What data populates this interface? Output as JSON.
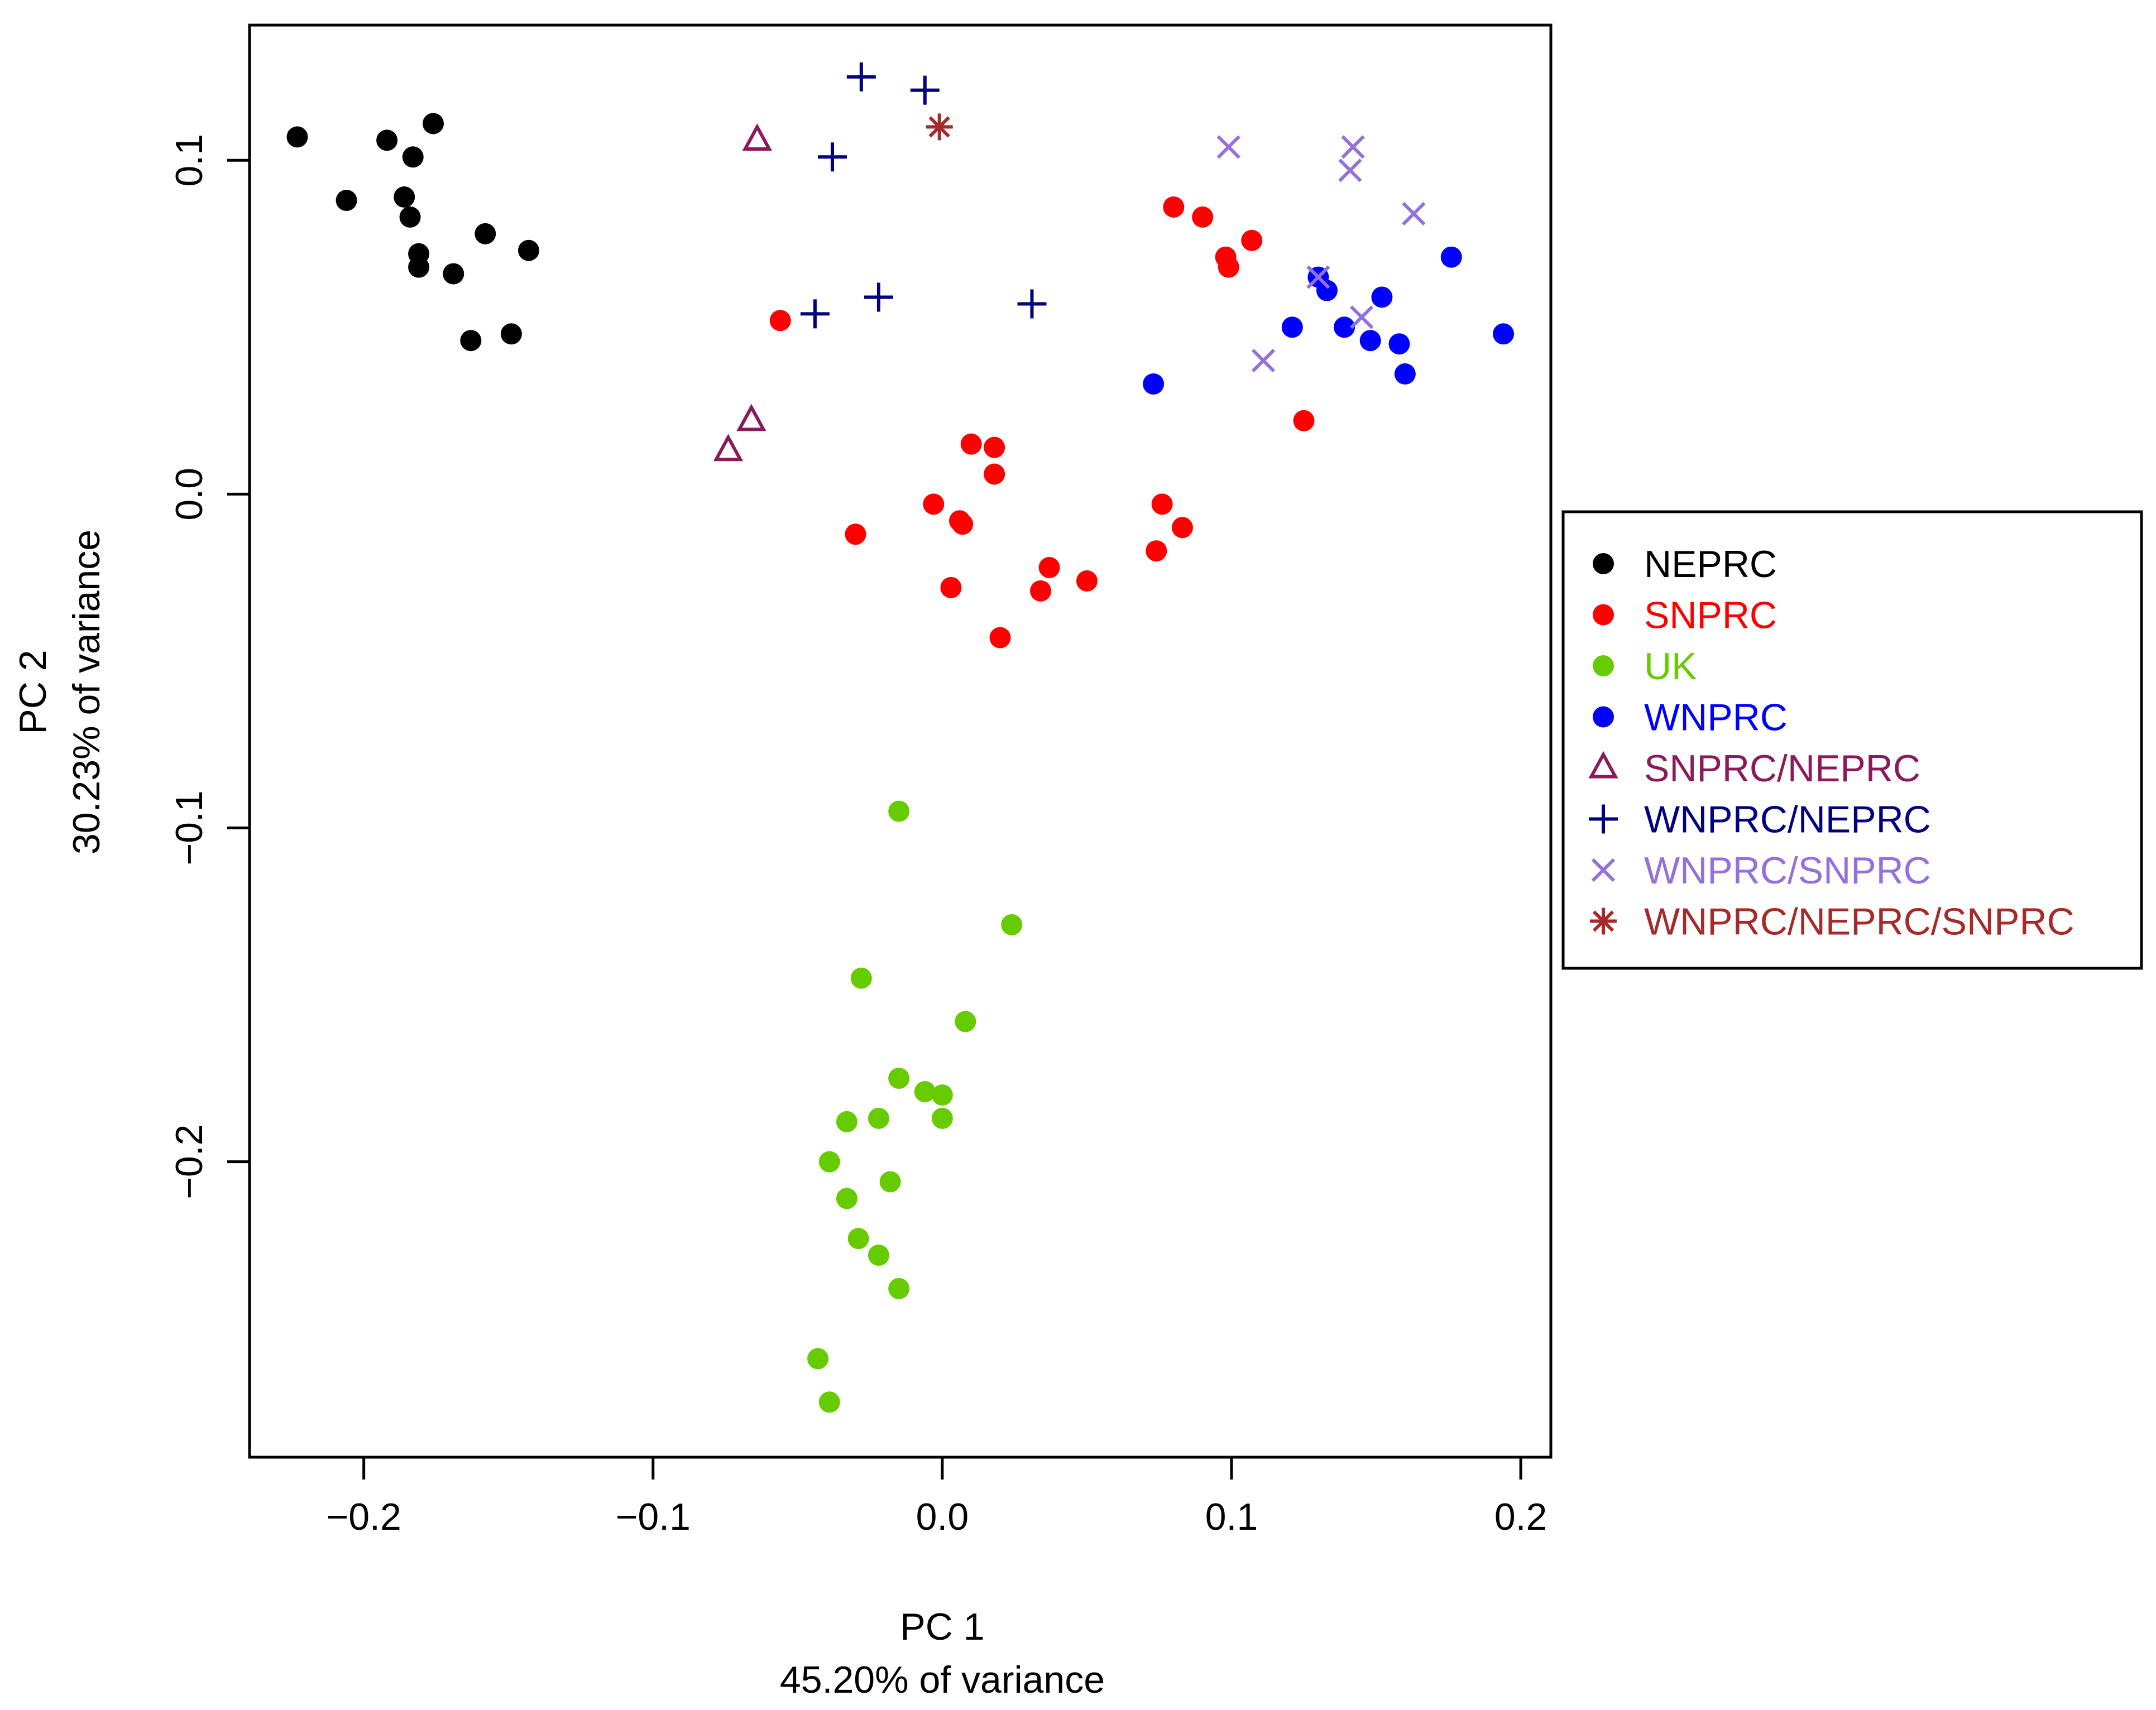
{
  "chart_data": {
    "type": "scatter",
    "xlabel": "PC 1",
    "xlabel_sub": "45.20% of variance",
    "ylabel": "PC 2",
    "ylabel_sub": "30.23% of variance",
    "xlim": [
      -0.2395,
      0.2104
    ],
    "ylim": [
      -0.2885,
      0.1405
    ],
    "xticks": [
      {
        "value": -0.2,
        "label": "−0.2"
      },
      {
        "value": -0.1,
        "label": "−0.1"
      },
      {
        "value": 0.0,
        "label": "0.0"
      },
      {
        "value": 0.1,
        "label": "0.1"
      },
      {
        "value": 0.2,
        "label": "0.2"
      }
    ],
    "yticks": [
      {
        "value": -0.2,
        "label": "−0.2"
      },
      {
        "value": -0.1,
        "label": "−0.1"
      },
      {
        "value": 0.0,
        "label": "0.0"
      },
      {
        "value": 0.1,
        "label": "0.1"
      }
    ],
    "legend_position": "right",
    "series": [
      {
        "name": "NEPRC",
        "marker": "dot",
        "color": "#000000",
        "points": [
          [
            -0.223,
            0.107
          ],
          [
            -0.206,
            0.088
          ],
          [
            -0.192,
            0.106
          ],
          [
            -0.186,
            0.089
          ],
          [
            -0.184,
            0.083
          ],
          [
            -0.183,
            0.101
          ],
          [
            -0.181,
            0.072
          ],
          [
            -0.181,
            0.068
          ],
          [
            -0.176,
            0.111
          ],
          [
            -0.169,
            0.066
          ],
          [
            -0.163,
            0.046
          ],
          [
            -0.158,
            0.078
          ],
          [
            -0.149,
            0.048
          ],
          [
            -0.143,
            0.073
          ]
        ]
      },
      {
        "name": "SNPRC",
        "marker": "dot",
        "color": "#ff0000",
        "points": [
          [
            -0.056,
            0.052
          ],
          [
            -0.03,
            -0.012
          ],
          [
            -0.003,
            -0.003
          ],
          [
            0.003,
            -0.028
          ],
          [
            0.006,
            -0.008
          ],
          [
            0.007,
            -0.009
          ],
          [
            0.01,
            0.015
          ],
          [
            0.018,
            0.014
          ],
          [
            0.018,
            0.006
          ],
          [
            0.02,
            -0.043
          ],
          [
            0.034,
            -0.029
          ],
          [
            0.037,
            -0.022
          ],
          [
            0.05,
            -0.026
          ],
          [
            0.074,
            -0.017
          ],
          [
            0.076,
            -0.003
          ],
          [
            0.08,
            0.086
          ],
          [
            0.083,
            -0.01
          ],
          [
            0.09,
            0.083
          ],
          [
            0.098,
            0.071
          ],
          [
            0.099,
            0.068
          ],
          [
            0.107,
            0.076
          ],
          [
            0.125,
            0.022
          ]
        ]
      },
      {
        "name": "UK",
        "marker": "dot",
        "color": "#66cc00",
        "points": [
          [
            -0.015,
            -0.095
          ],
          [
            0.024,
            -0.129
          ],
          [
            -0.028,
            -0.145
          ],
          [
            0.008,
            -0.158
          ],
          [
            -0.015,
            -0.175
          ],
          [
            -0.006,
            -0.179
          ],
          [
            0.0,
            -0.18
          ],
          [
            -0.033,
            -0.188
          ],
          [
            -0.022,
            -0.187
          ],
          [
            0.0,
            -0.187
          ],
          [
            -0.039,
            -0.2
          ],
          [
            -0.018,
            -0.206
          ],
          [
            -0.033,
            -0.211
          ],
          [
            -0.029,
            -0.223
          ],
          [
            -0.022,
            -0.228
          ],
          [
            -0.015,
            -0.238
          ],
          [
            -0.043,
            -0.259
          ],
          [
            -0.039,
            -0.272
          ]
        ]
      },
      {
        "name": "WNPRC",
        "marker": "dot",
        "color": "#0000ff",
        "points": [
          [
            0.073,
            0.033
          ],
          [
            0.121,
            0.05
          ],
          [
            0.13,
            0.065
          ],
          [
            0.133,
            0.061
          ],
          [
            0.139,
            0.05
          ],
          [
            0.148,
            0.046
          ],
          [
            0.152,
            0.059
          ],
          [
            0.158,
            0.045
          ],
          [
            0.16,
            0.036
          ],
          [
            0.176,
            0.071
          ],
          [
            0.194,
            0.048
          ]
        ]
      },
      {
        "name": "SNPRC/NEPRC",
        "marker": "triangle",
        "color": "#8b1a5a",
        "points": [
          [
            -0.064,
            0.106
          ],
          [
            -0.066,
            0.022
          ],
          [
            -0.074,
            0.013
          ]
        ]
      },
      {
        "name": "WNPRC/NEPRC",
        "marker": "plus",
        "color": "#000080",
        "points": [
          [
            -0.028,
            0.125
          ],
          [
            -0.006,
            0.121
          ],
          [
            -0.038,
            0.101
          ],
          [
            -0.022,
            0.059
          ],
          [
            -0.044,
            0.054
          ],
          [
            0.031,
            0.057
          ]
        ]
      },
      {
        "name": "WNPRC/SNPRC",
        "marker": "cross",
        "color": "#9370db",
        "points": [
          [
            0.099,
            0.104
          ],
          [
            0.142,
            0.104
          ],
          [
            0.141,
            0.097
          ],
          [
            0.163,
            0.084
          ],
          [
            0.13,
            0.065
          ],
          [
            0.145,
            0.053
          ],
          [
            0.111,
            0.04
          ]
        ]
      },
      {
        "name": "WNPRC/NEPRC/SNPRC",
        "marker": "star",
        "color": "#a52a2a",
        "points": [
          [
            -0.001,
            0.11
          ]
        ]
      }
    ]
  }
}
